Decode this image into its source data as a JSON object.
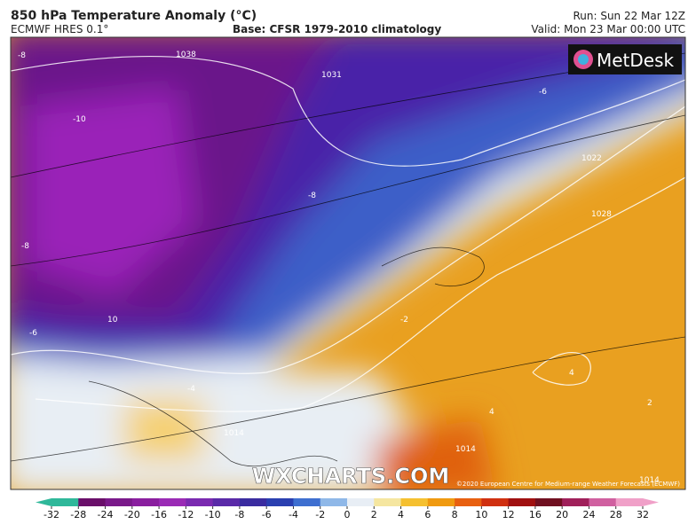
{
  "header": {
    "title": "850 hPa Temperature Anomaly (°C)",
    "model": "ECMWF HRES 0.1°",
    "base": "Base: CFSR 1979-2010 climatology",
    "run": "Run: Sun 22 Mar 12Z",
    "valid": "Valid: Mon 23 Mar 00:00 UTC"
  },
  "logo": "MetDesk",
  "watermark": "WXCHARTS.COM",
  "credit": "©2020 European Centre for Medium-range Weather Forecasts (ECMWF)",
  "contour_labels": [
    "-8",
    "-10",
    "-8",
    "-6",
    "10",
    "-8",
    "-6",
    "-2",
    "-4",
    "4",
    "4",
    "2",
    "1022",
    "1028",
    "1031",
    "1038",
    "1014",
    "1014",
    "1014"
  ],
  "colorbar": {
    "ticks": [
      -32,
      -28,
      -24,
      -20,
      -16,
      -12,
      -10,
      -8,
      -6,
      -4,
      -2,
      0,
      2,
      4,
      6,
      8,
      10,
      12,
      16,
      20,
      24,
      28,
      32
    ],
    "colors": [
      "#2fb89a",
      "#6a0f6a",
      "#7a1a8a",
      "#8a1f9f",
      "#9a2bb5",
      "#7a2ab0",
      "#5a2aa8",
      "#3a2ca0",
      "#2a3fb0",
      "#3e6fd0",
      "#8fb8e8",
      "#e8eef5",
      "#f5e6a0",
      "#f5c030",
      "#f09a10",
      "#e86010",
      "#d03010",
      "#a01010",
      "#701020",
      "#a0205a",
      "#d060a0",
      "#f0a0c8"
    ]
  }
}
